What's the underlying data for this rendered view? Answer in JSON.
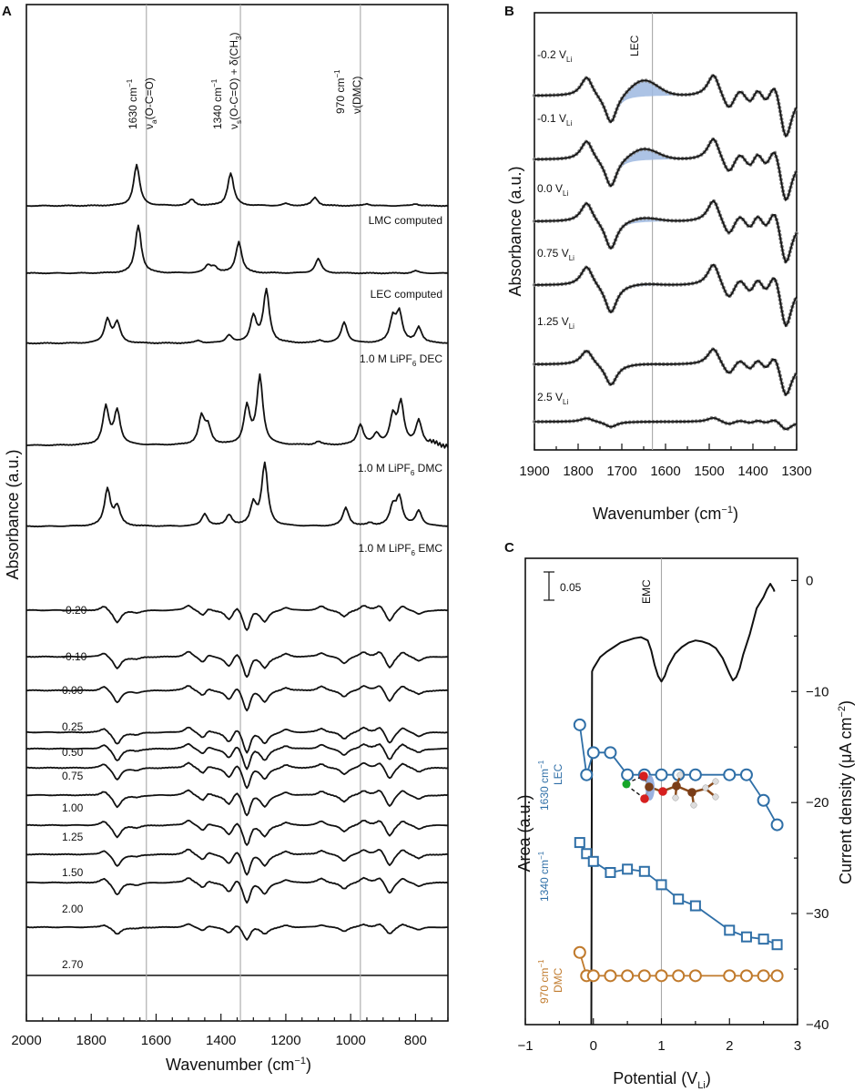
{
  "chart_data": [
    {
      "panel": "A",
      "type": "line",
      "xlabel": "Wavenumber (cm",
      "xlabel_sup": "−1",
      "xlabel_end": ")",
      "ylabel": "Absorbance (a.u.)",
      "xlim": [
        2000,
        700
      ],
      "x_reversed": true,
      "xticks": [
        2000,
        1800,
        1600,
        1400,
        1200,
        1000,
        800
      ],
      "reference_lines": [
        1630,
        1340,
        970
      ],
      "annotations": [
        {
          "line1": "1630 cm",
          "line1_sup": "−1",
          "line2": "ν",
          "line2_sub": "a",
          "line2_end": "(O-C=O)"
        },
        {
          "line1": "1340 cm",
          "line1_sup": "−1",
          "line2": "ν",
          "line2_sub": "s",
          "line2_end": "(O-C=O) + δ(CH",
          "line2_sub2": "3",
          "line2_end2": ")"
        },
        {
          "line1": "970 cm",
          "line1_sup": "−1",
          "line2": "ν(DMC)"
        }
      ],
      "reference_spectra": [
        {
          "name": "LMC computed",
          "peaks": [
            [
              1660,
              1.0
            ],
            [
              1490,
              0.15
            ],
            [
              1370,
              0.8
            ],
            [
              1200,
              0.05
            ],
            [
              1110,
              0.2
            ],
            [
              950,
              0.05
            ],
            [
              800,
              0.05
            ]
          ]
        },
        {
          "name": "LEC computed",
          "peaks": [
            [
              1655,
              1.0
            ],
            [
              1440,
              0.15
            ],
            [
              1420,
              0.12
            ],
            [
              1345,
              0.65
            ],
            [
              1100,
              0.3
            ],
            [
              800,
              0.05
            ]
          ]
        },
        {
          "name": "1.0 M LiPF",
          "name_sub": "6",
          "name_end": " DEC",
          "peaks": [
            [
              1750,
              0.45
            ],
            [
              1720,
              0.38
            ],
            [
              1470,
              0.05
            ],
            [
              1375,
              0.15
            ],
            [
              1300,
              0.5
            ],
            [
              1260,
              1.0
            ],
            [
              1095,
              0.05
            ],
            [
              1020,
              0.4
            ],
            [
              870,
              0.45
            ],
            [
              850,
              0.55
            ],
            [
              790,
              0.3
            ]
          ]
        },
        {
          "name": "1.0 M LiPF",
          "name_sub": "6",
          "name_end": " DMC",
          "peaks": [
            [
              1755,
              0.55
            ],
            [
              1720,
              0.5
            ],
            [
              1460,
              0.4
            ],
            [
              1440,
              0.25
            ],
            [
              1320,
              0.55
            ],
            [
              1280,
              1.0
            ],
            [
              1100,
              0.05
            ],
            [
              970,
              0.3
            ],
            [
              920,
              0.15
            ],
            [
              870,
              0.4
            ],
            [
              845,
              0.6
            ],
            [
              790,
              0.35
            ]
          ]
        },
        {
          "name": "1.0 M LiPF",
          "name_sub": "6",
          "name_end": " EMC",
          "peaks": [
            [
              1750,
              0.6
            ],
            [
              1720,
              0.3
            ],
            [
              1450,
              0.2
            ],
            [
              1375,
              0.18
            ],
            [
              1300,
              0.35
            ],
            [
              1265,
              1.0
            ],
            [
              1015,
              0.3
            ],
            [
              940,
              0.05
            ],
            [
              870,
              0.3
            ],
            [
              850,
              0.45
            ],
            [
              790,
              0.25
            ]
          ]
        }
      ],
      "potential_series": [
        "-0.20",
        "-0.10",
        "0.00",
        "0.25",
        "0.50",
        "0.75",
        "1.00",
        "1.25",
        "1.50",
        "2.00",
        "2.70"
      ]
    },
    {
      "panel": "B",
      "type": "line",
      "xlabel": "Wavenumber (cm",
      "xlabel_sup": "−1",
      "xlabel_end": ")",
      "ylabel": "Absorbance (a.u.)",
      "xlim": [
        1900,
        1300
      ],
      "x_reversed": true,
      "xticks": [
        1900,
        1800,
        1700,
        1600,
        1500,
        1400,
        1300
      ],
      "reference_lines": [
        1630
      ],
      "reference_label": "LEC",
      "series": [
        {
          "label": "-0.2 V",
          "label_sub": "Li",
          "lec_weight": 1.0
        },
        {
          "label": "-0.1 V",
          "label_sub": "Li",
          "lec_weight": 0.7
        },
        {
          "label": "0.0 V",
          "label_sub": "Li",
          "lec_weight": 0.25
        },
        {
          "label": "0.75 V",
          "label_sub": "Li",
          "lec_weight": 0.1
        },
        {
          "label": "1.25 V",
          "label_sub": "Li",
          "lec_weight": 0.05
        },
        {
          "label": "2.5 V",
          "label_sub": "Li",
          "lec_weight": 0.0
        }
      ]
    },
    {
      "panel": "C",
      "type": "line",
      "xlabel": "Potential (V",
      "xlabel_sub": "Li",
      "xlabel_end": ")",
      "ylabel_left": "Area (a.u.)",
      "ylabel_right": "Current density (μA cm",
      "ylabel_right_sup": "−2",
      "ylabel_right_end": ")",
      "xlim": [
        -1,
        3
      ],
      "xticks": [
        -1,
        0,
        1,
        2,
        3
      ],
      "y2lim": [
        -40,
        2
      ],
      "y2ticks": [
        0,
        -10,
        -20,
        -30,
        -40
      ],
      "reference_lines": [
        1.0
      ],
      "reference_label": "EMC",
      "scale_bar_label": "0.05",
      "current_density": {
        "x": [
          -0.03,
          -0.02,
          0.0,
          0.05,
          0.1,
          0.2,
          0.3,
          0.4,
          0.5,
          0.6,
          0.7,
          0.8,
          0.85,
          0.9,
          0.95,
          1.0,
          1.05,
          1.1,
          1.2,
          1.3,
          1.4,
          1.5,
          1.6,
          1.7,
          1.8,
          1.9,
          2.0,
          2.05,
          2.1,
          2.15,
          2.2,
          2.3,
          2.4,
          2.5,
          2.55,
          2.6,
          2.65,
          2.66
        ],
        "y": [
          -40,
          -8.2,
          -7.9,
          -7.4,
          -6.9,
          -6.4,
          -6.0,
          -5.6,
          -5.4,
          -5.2,
          -5.1,
          -5.4,
          -6.3,
          -7.6,
          -8.6,
          -9.1,
          -8.6,
          -7.7,
          -6.6,
          -6.0,
          -5.6,
          -5.4,
          -5.5,
          -5.7,
          -6.1,
          -7.0,
          -8.4,
          -9.0,
          -8.7,
          -7.9,
          -6.7,
          -4.8,
          -2.5,
          -1.5,
          -0.8,
          -0.3,
          -0.8,
          -1.0
        ]
      },
      "series": [
        {
          "name": "1630 cm",
          "name_sup": "−1",
          "sub": "LEC",
          "color": "#2f6fa7",
          "marker": "circle",
          "x": [
            -0.2,
            -0.1,
            0.0,
            0.25,
            0.5,
            0.75,
            1.0,
            1.25,
            1.5,
            2.0,
            2.25,
            2.5,
            2.7
          ],
          "y": [
            -13.0,
            -17.5,
            -15.5,
            -15.5,
            -17.5,
            -17.5,
            -17.5,
            -17.5,
            -17.5,
            -17.5,
            -17.5,
            -19.8,
            -22.0
          ]
        },
        {
          "name": "1340 cm",
          "name_sup": "−1",
          "color": "#2f6fa7",
          "marker": "square",
          "x": [
            -0.2,
            -0.1,
            0.0,
            0.25,
            0.5,
            0.75,
            1.0,
            1.25,
            1.5,
            2.0,
            2.25,
            2.5,
            2.7
          ],
          "y": [
            -23.6,
            -24.6,
            -25.3,
            -26.3,
            -26.0,
            -26.2,
            -27.4,
            -28.7,
            -29.3,
            -31.5,
            -32.1,
            -32.3,
            -32.8
          ]
        },
        {
          "name": "970 cm",
          "name_sup": "−1",
          "sub": "DMC",
          "color": "#c07a2c",
          "marker": "circle",
          "x": [
            -0.2,
            -0.1,
            0.0,
            0.25,
            0.5,
            0.75,
            1.0,
            1.25,
            1.5,
            2.0,
            2.25,
            2.5,
            2.7
          ],
          "y": [
            -33.5,
            -35.6,
            -35.6,
            -35.6,
            -35.6,
            -35.6,
            -35.6,
            -35.6,
            -35.6,
            -35.6,
            -35.6,
            -35.6,
            -35.6
          ]
        }
      ]
    }
  ],
  "panel_labels": [
    "A",
    "B",
    "C"
  ]
}
